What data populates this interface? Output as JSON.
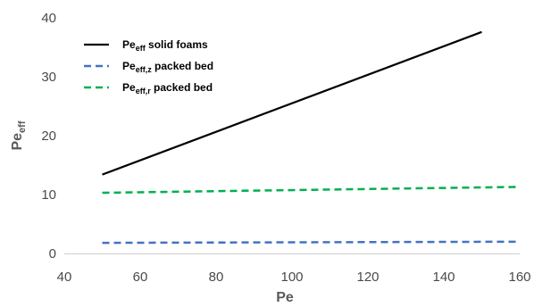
{
  "chart_data": {
    "type": "line",
    "xlabel": "Pe",
    "ylabel": {
      "main": "Pe",
      "sub": "eff"
    },
    "xlim": [
      40,
      160
    ],
    "ylim": [
      0,
      40
    ],
    "xticks": [
      40,
      60,
      80,
      100,
      120,
      140,
      160
    ],
    "yticks": [
      0,
      10,
      20,
      30,
      40
    ],
    "grid": false,
    "legend_position": "top-left",
    "series": [
      {
        "legend": {
          "main": "Pe",
          "sub": "eff",
          "rest": " solid foams"
        },
        "style": "solid",
        "color": "#000000",
        "x": [
          50,
          150
        ],
        "y": [
          13.4,
          37.6
        ]
      },
      {
        "legend": {
          "main": "Pe",
          "sub": "eff,z",
          "rest": " packed bed"
        },
        "style": "dashed",
        "color": "#4472c4",
        "x": [
          50,
          160
        ],
        "y": [
          1.8,
          2.0
        ]
      },
      {
        "legend": {
          "main": "Pe",
          "sub": "eff,r",
          "rest": " packed bed"
        },
        "style": "dashed",
        "color": "#00b050",
        "x": [
          50,
          160
        ],
        "y": [
          10.3,
          11.3
        ]
      }
    ]
  }
}
